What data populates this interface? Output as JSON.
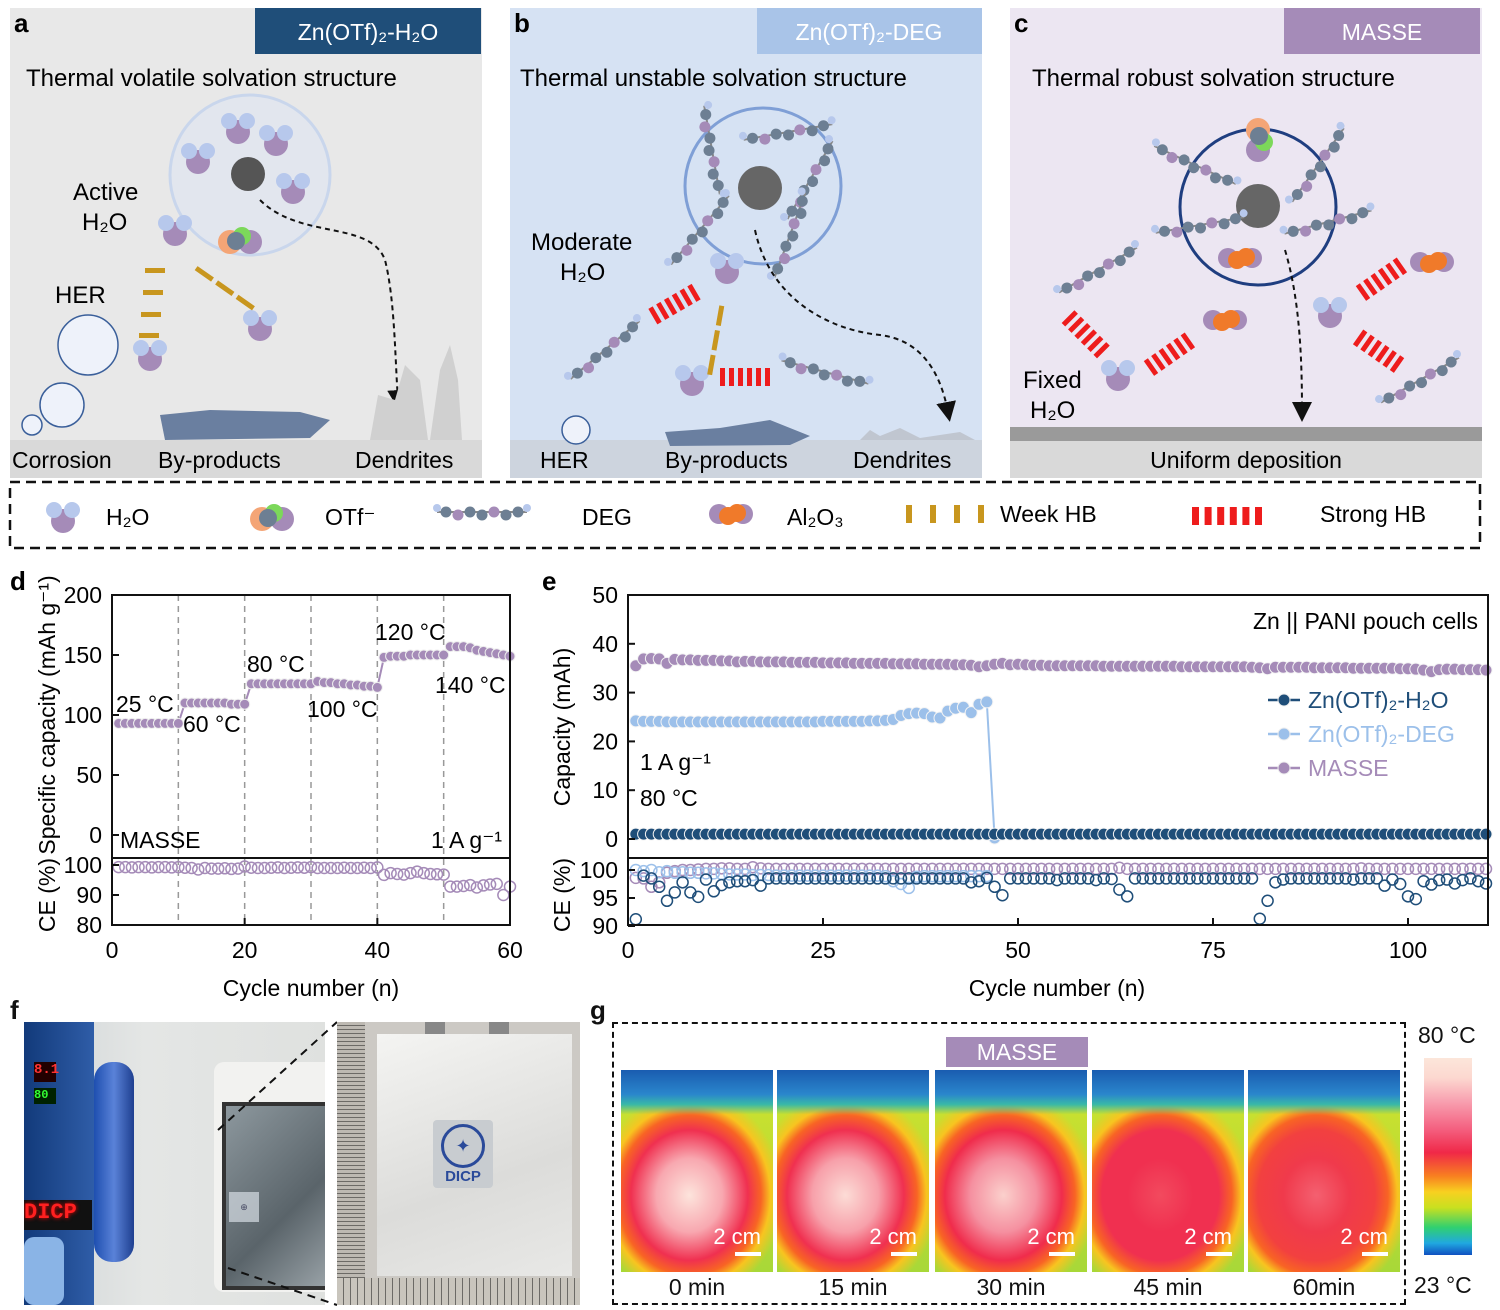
{
  "panels": {
    "a": {
      "letter": "a",
      "tag": "Zn(OTf)₂-H₂O",
      "tag_color": "#1f4e79",
      "bg": "#e8e8e8",
      "title": "Thermal volatile solvation structure",
      "active_label_1": "Active",
      "active_label_2": "H₂O",
      "her": "HER",
      "bottom": [
        "Corrosion",
        "By-products",
        "Dendrites"
      ]
    },
    "b": {
      "letter": "b",
      "tag": "Zn(OTf)₂-DEG",
      "tag_color": "#a9c4e8",
      "bg": "#d6e2f3",
      "title": "Thermal unstable solvation structure",
      "moderate_1": "Moderate",
      "moderate_2": "H₂O",
      "bottom": [
        "HER",
        "By-products",
        "Dendrites"
      ]
    },
    "c": {
      "letter": "c",
      "tag": "MASSE",
      "tag_color": "#a58bb8",
      "bg": "#ece6f2",
      "title": "Thermal robust solvation structure",
      "fixed_1": "Fixed",
      "fixed_2": "H₂O",
      "bottom": [
        "Uniform deposition"
      ]
    }
  },
  "legend": {
    "items": [
      {
        "label": "H₂O",
        "icon": "water-molecule-icon"
      },
      {
        "label": "OTf⁻",
        "icon": "triflate-anion-icon"
      },
      {
        "label": "DEG",
        "icon": "deg-chain-icon"
      },
      {
        "label": "Al₂O₃",
        "icon": "alumina-icon"
      },
      {
        "label": "Week HB",
        "icon": "weak-hydrogen-bond-icon"
      },
      {
        "label": "Strong HB",
        "icon": "strong-hydrogen-bond-icon"
      }
    ]
  },
  "colors": {
    "h2o_series": "#1f4e79",
    "deg_series": "#9cc0ea",
    "masse_series": "#a58bb8",
    "weak_hb": "#c8961e",
    "strong_hb": "#ee1c1c"
  },
  "chart_data": [
    {
      "panel": "d",
      "type": "scatter",
      "xlabel": "Cycle number (n)",
      "ylabel": "Specific capacity (mAh g⁻¹)",
      "ylabel_lower": "CE (%)",
      "xlim": [
        0,
        60
      ],
      "ylim": [
        0,
        200
      ],
      "ylim_lower": [
        80,
        100
      ],
      "xticks": [
        0,
        20,
        40,
        60
      ],
      "yticks": [
        0,
        50,
        100,
        150,
        200
      ],
      "yticks_lower": [
        80,
        90,
        100
      ],
      "segment_dividers": [
        10,
        20,
        30,
        40,
        50
      ],
      "annotations": [
        "25 °C",
        "60 °C",
        "80 °C",
        "100 °C",
        "120 °C",
        "140 °C",
        "MASSE",
        "1 A g⁻¹"
      ],
      "series": [
        {
          "name": "MASSE",
          "x": [
            1,
            2,
            3,
            4,
            5,
            6,
            7,
            8,
            9,
            10,
            11,
            12,
            13,
            14,
            15,
            16,
            17,
            18,
            19,
            20,
            21,
            22,
            23,
            24,
            25,
            26,
            27,
            28,
            29,
            30,
            31,
            32,
            33,
            34,
            35,
            36,
            37,
            38,
            39,
            40,
            41,
            42,
            43,
            44,
            45,
            46,
            47,
            48,
            49,
            50,
            51,
            52,
            53,
            54,
            55,
            56,
            57,
            58,
            59,
            60
          ],
          "capacity": [
            93,
            93,
            93,
            93,
            93,
            93,
            93,
            93,
            93,
            93,
            110,
            110,
            110,
            110,
            110,
            110,
            110,
            109,
            109,
            109,
            126,
            126,
            126,
            126,
            126,
            126,
            126,
            126,
            126,
            126,
            128,
            127,
            127,
            126,
            126,
            125,
            125,
            124,
            124,
            123,
            148,
            149,
            149,
            149,
            150,
            150,
            150,
            150,
            150,
            150,
            157,
            157,
            157,
            156,
            154,
            153,
            152,
            151,
            150,
            149
          ],
          "ce": [
            99.3,
            99.3,
            99.2,
            99.3,
            99.3,
            99.2,
            99.3,
            99.3,
            99.2,
            99.3,
            99.1,
            99.0,
            98.5,
            99.0,
            98.8,
            98.8,
            98.9,
            98.7,
            98.8,
            99.5,
            99.1,
            99.0,
            99.0,
            99.1,
            99.2,
            99.0,
            99.1,
            99.2,
            99.1,
            99.3,
            99.0,
            99.0,
            99.0,
            99.0,
            99.1,
            99.0,
            99.0,
            99.1,
            99.0,
            99.2,
            96.7,
            97.3,
            97.0,
            96.8,
            97.3,
            97.8,
            97.3,
            97.0,
            96.9,
            96.8,
            92.8,
            92.8,
            93.0,
            93.3,
            92.5,
            93.2,
            93.5,
            93.7,
            90.0,
            92.8
          ]
        }
      ]
    },
    {
      "panel": "e",
      "type": "scatter",
      "title": "Zn || PANI pouch cells",
      "xlabel": "Cycle number (n)",
      "ylabel": "Capacity (mAh)",
      "ylabel_lower": "CE (%)",
      "xlim": [
        0,
        110
      ],
      "ylim": [
        0,
        50
      ],
      "ylim_lower": [
        90,
        101
      ],
      "xticks": [
        0,
        25,
        50,
        75,
        100
      ],
      "yticks": [
        0,
        10,
        20,
        30,
        40,
        50
      ],
      "yticks_lower": [
        90,
        95,
        100
      ],
      "annotations": [
        "1 A g⁻¹",
        "80 °C"
      ],
      "legend_position": "right",
      "series": [
        {
          "name": "Zn(OTf)₂-H₂O",
          "capacity": [
            1.0,
            1.0,
            1.0,
            1.0,
            1.0,
            1.0,
            1.0,
            1.0,
            1.0,
            1.0,
            1.0,
            1.0,
            1.0,
            1.0,
            1.0,
            1.0,
            1.0,
            1.0,
            1.0,
            1.0,
            1.0,
            1.0,
            1.0,
            1.0,
            1.0,
            1.0,
            1.0,
            1.0,
            1.0,
            1.0,
            1.0,
            1.0,
            1.0,
            1.0,
            1.0,
            1.0,
            1.0,
            1.0,
            1.0,
            1.0,
            1.0,
            1.0,
            1.0,
            1.0,
            1.0,
            1.0,
            1.0,
            1.0,
            1.0,
            1.0,
            1.0,
            1.0,
            1.0,
            1.0,
            1.0,
            1.0,
            1.0,
            1.0,
            1.0,
            1.0,
            1.0,
            1.0,
            1.0,
            1.0,
            1.0,
            1.0,
            1.0,
            1.0,
            1.0,
            1.0,
            1.0,
            1.0,
            1.0,
            1.0,
            1.0,
            1.0,
            1.0,
            1.0,
            1.0,
            1.0,
            1.0,
            1.0,
            1.0,
            1.0,
            1.0,
            1.0,
            1.0,
            1.0,
            1.0,
            1.0,
            1.0,
            1.0,
            1.0,
            1.0,
            1.0,
            1.0,
            1.0,
            1.0,
            1.0,
            1.0,
            1.0,
            1.0,
            1.0,
            1.0,
            1.0,
            1.0,
            1.0,
            1.0,
            1.0,
            1.0
          ],
          "ce": [
            91.2,
            99.0,
            98.5,
            97.0,
            94.5,
            96.0,
            97.8,
            96.0,
            95.2,
            98.3,
            96.2,
            97.3,
            97.8,
            98.0,
            98.0,
            98.2,
            97.2,
            98.5,
            98.5,
            98.5,
            98.5,
            98.5,
            98.5,
            98.5,
            98.5,
            98.5,
            98.5,
            98.5,
            98.5,
            98.5,
            98.5,
            98.5,
            98.5,
            98.5,
            98.5,
            98.5,
            98.5,
            98.5,
            98.5,
            98.5,
            98.5,
            98.5,
            98.5,
            97.8,
            98.0,
            98.6,
            97.0,
            95.5,
            98.5,
            98.5,
            98.5,
            98.5,
            98.5,
            98.5,
            98.2,
            98.5,
            98.5,
            98.5,
            98.5,
            98.2,
            98.5,
            98.4,
            96.5,
            95.3,
            98.5,
            98.5,
            98.5,
            98.5,
            98.5,
            98.5,
            98.5,
            98.5,
            98.5,
            98.5,
            98.5,
            98.5,
            98.5,
            98.5,
            98.5,
            98.5,
            91.3,
            94.5,
            97.8,
            98.3,
            98.5,
            98.5,
            98.5,
            98.5,
            98.5,
            98.5,
            98.5,
            98.5,
            98.3,
            98.5,
            98.5,
            98.5,
            97.2,
            98.3,
            97.5,
            95.3,
            94.8,
            98.0,
            97.4,
            98.2,
            98.3,
            97.6,
            98.2,
            98.5,
            98.0,
            97.6
          ]
        },
        {
          "name": "Zn(OTf)₂-DEG",
          "capacity": [
            24.2,
            24.1,
            24.1,
            24.1,
            24.0,
            24.0,
            24.0,
            24.0,
            24.0,
            24.0,
            24.0,
            24.0,
            24.0,
            24.0,
            24.0,
            24.0,
            24.0,
            24.0,
            24.0,
            24.0,
            24.0,
            24.0,
            24.0,
            24.0,
            24.1,
            24.1,
            24.1,
            24.1,
            24.1,
            24.1,
            24.2,
            24.2,
            24.3,
            24.5,
            25.3,
            25.7,
            25.8,
            25.7,
            25.0,
            24.8,
            26.2,
            26.8,
            27.0,
            25.9,
            27.6,
            28.1,
            0.2
          ],
          "ce": [
            100.0,
            99.8,
            100.0,
            99.6,
            99.8,
            99.5,
            99.6,
            99.5,
            99.5,
            99.4,
            99.4,
            99.3,
            99.2,
            99.2,
            99.2,
            99.1,
            99.1,
            99.1,
            99.0,
            99.0,
            99.0,
            99.0,
            99.0,
            99.0,
            99.0,
            99.0,
            99.0,
            99.0,
            99.0,
            99.0,
            99.0,
            99.0,
            98.9,
            98.0,
            97.5,
            96.8,
            98.8,
            98.9,
            98.9,
            98.9,
            98.9,
            98.9,
            98.9,
            98.9,
            98.9,
            98.9
          ]
        },
        {
          "name": "MASSE",
          "capacity": [
            35.5,
            36.9,
            37.0,
            36.9,
            36.0,
            36.8,
            36.7,
            36.7,
            36.6,
            36.6,
            36.6,
            36.5,
            36.5,
            36.3,
            36.4,
            36.4,
            36.3,
            36.3,
            36.3,
            36.3,
            36.2,
            36.2,
            36.2,
            36.2,
            36.1,
            36.1,
            36.1,
            36.1,
            36.0,
            36.0,
            36.0,
            36.0,
            36.0,
            35.9,
            35.9,
            35.9,
            35.9,
            35.8,
            35.8,
            35.8,
            35.8,
            35.7,
            35.7,
            35.6,
            35.3,
            35.5,
            35.8,
            36.0,
            35.7,
            35.8,
            35.7,
            35.6,
            35.6,
            35.5,
            35.5,
            35.5,
            35.5,
            35.5,
            35.5,
            35.5,
            35.4,
            35.4,
            35.4,
            35.4,
            35.4,
            35.4,
            35.4,
            35.4,
            35.4,
            35.4,
            35.3,
            35.3,
            35.3,
            35.3,
            35.3,
            35.3,
            35.3,
            35.3,
            35.3,
            35.2,
            35.1,
            34.9,
            35.2,
            35.2,
            35.2,
            35.2,
            35.2,
            35.1,
            35.1,
            35.1,
            35.1,
            35.1,
            35.0,
            35.0,
            35.0,
            35.0,
            35.0,
            35.0,
            34.9,
            34.9,
            34.8,
            34.6,
            34.3,
            34.7,
            34.8,
            34.8,
            34.7,
            34.7,
            34.7,
            34.6
          ],
          "ce": [
            98.6,
            98.5,
            97.0,
            97.8,
            99.5,
            99.8,
            100.0,
            100.0,
            100.1,
            100.2,
            100.2,
            100.3,
            100.3,
            100.2,
            100.2,
            100.5,
            100.3,
            100.2,
            100.2,
            100.2,
            100.2,
            100.2,
            100.2,
            100.2,
            100.2,
            100.2,
            100.2,
            100.2,
            100.2,
            100.2,
            100.2,
            100.2,
            100.2,
            100.2,
            100.2,
            100.2,
            100.2,
            100.2,
            100.2,
            100.2,
            100.2,
            100.2,
            100.2,
            100.2,
            100.2,
            100.2,
            100.2,
            100.2,
            100.2,
            100.2,
            100.2,
            100.2,
            100.2,
            100.2,
            100.2,
            100.2,
            100.2,
            100.2,
            100.2,
            100.2,
            100.2,
            100.2,
            100.4,
            100.2,
            100.2,
            100.2,
            100.2,
            100.2,
            100.2,
            100.2,
            100.2,
            100.2,
            100.2,
            100.2,
            100.2,
            100.2,
            100.2,
            100.2,
            100.2,
            100.2,
            100.2,
            100.2,
            100.2,
            100.2,
            100.2,
            100.2,
            100.2,
            100.2,
            100.2,
            100.2,
            100.2,
            100.2,
            100.2,
            100.3,
            100.2,
            100.2,
            100.2,
            100.2,
            100.2,
            100.2,
            100.2,
            100.2,
            100.2,
            100.2,
            100.2,
            100.2,
            100.2,
            100.2,
            100.2,
            100.2
          ]
        }
      ]
    }
  ],
  "panel_f": {
    "letter": "f",
    "photo_left_icon": "oven-with-pouch-cell-photo",
    "photo_right_icon": "pouch-cell-photo",
    "logo_text": "DICP",
    "oven_display": "DICP"
  },
  "panel_g": {
    "letter": "g",
    "tag": "MASSE",
    "tag_color": "#a58bb8",
    "frames": [
      {
        "time": "0 min",
        "scale": "2 cm"
      },
      {
        "time": "15 min",
        "scale": "2 cm"
      },
      {
        "time": "30 min",
        "scale": "2 cm"
      },
      {
        "time": "45 min",
        "scale": "2 cm"
      },
      {
        "time": "60min",
        "scale": "2 cm"
      }
    ],
    "colorbar_max": "80 °C",
    "colorbar_min": "23 °C"
  }
}
